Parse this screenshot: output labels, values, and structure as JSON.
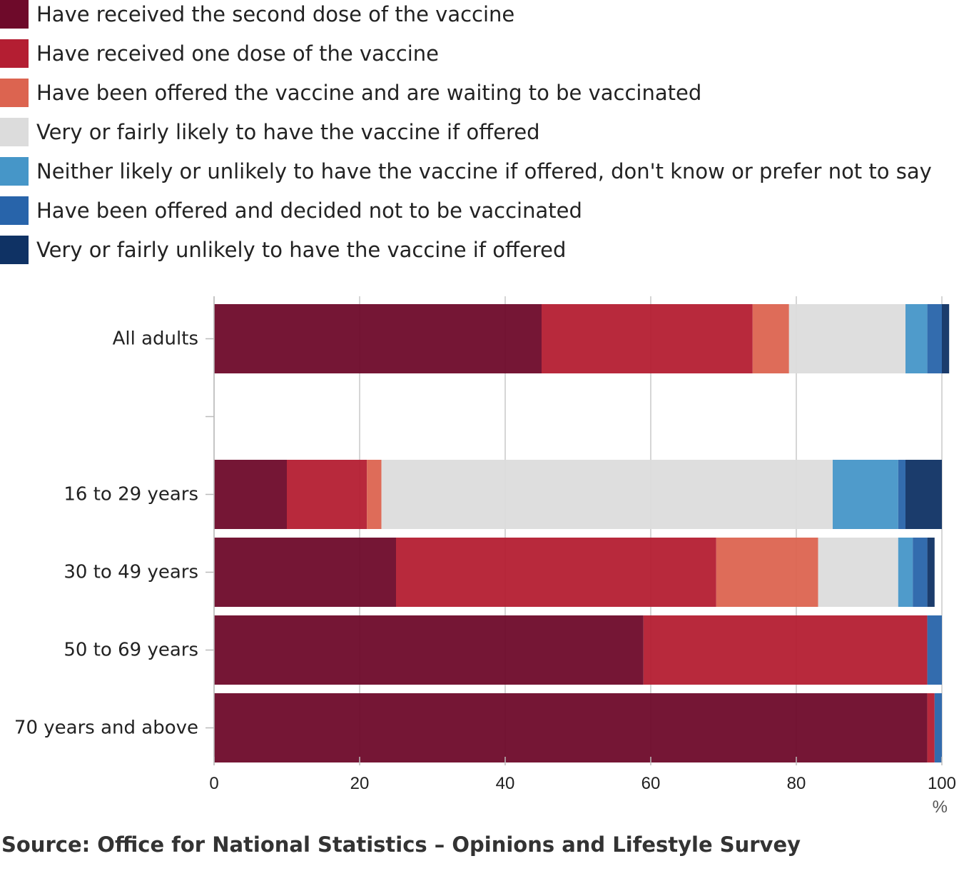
{
  "chart_data": {
    "type": "bar",
    "orientation": "horizontal",
    "stacked": true,
    "categories": [
      "All adults",
      "",
      "16 to 29 years",
      "30 to 49 years",
      "50 to 69 years",
      "70 years and above"
    ],
    "series": [
      {
        "name": "Have received the second dose of the vaccine",
        "color": "#6e0a2a",
        "values": [
          45,
          null,
          10,
          25,
          59,
          98
        ]
      },
      {
        "name": "Have received one dose of the vaccine",
        "color": "#b41e32",
        "values": [
          29,
          null,
          11,
          44,
          39,
          1
        ]
      },
      {
        "name": "Have been offered the vaccine and are waiting to be vaccinated",
        "color": "#dc6450",
        "values": [
          5,
          null,
          2,
          14,
          0,
          0
        ]
      },
      {
        "name": "Very or fairly likely to have the vaccine if offered",
        "color": "#dcdcdc",
        "values": [
          16,
          null,
          62,
          11,
          0,
          0
        ]
      },
      {
        "name": "Neither likely or unlikely to have the vaccine if offered, don't know or prefer not to say",
        "color": "#4696c8",
        "values": [
          3,
          null,
          9,
          2,
          0,
          0
        ]
      },
      {
        "name": "Have been offered and decided not to be vaccinated",
        "color": "#2864aa",
        "values": [
          2,
          null,
          1,
          2,
          2,
          1
        ]
      },
      {
        "name": "Very or fairly unlikely to have the vaccine if offered",
        "color": "#0f3264",
        "values": [
          1,
          null,
          5,
          1,
          0,
          0
        ]
      }
    ],
    "xlim": [
      0,
      100
    ],
    "xticks": [
      0,
      20,
      40,
      60,
      80,
      100
    ],
    "xunit": "%",
    "grid": true,
    "legend_position": "top",
    "source": "Source: Office for National Statistics – Opinions and Lifestyle Survey"
  }
}
